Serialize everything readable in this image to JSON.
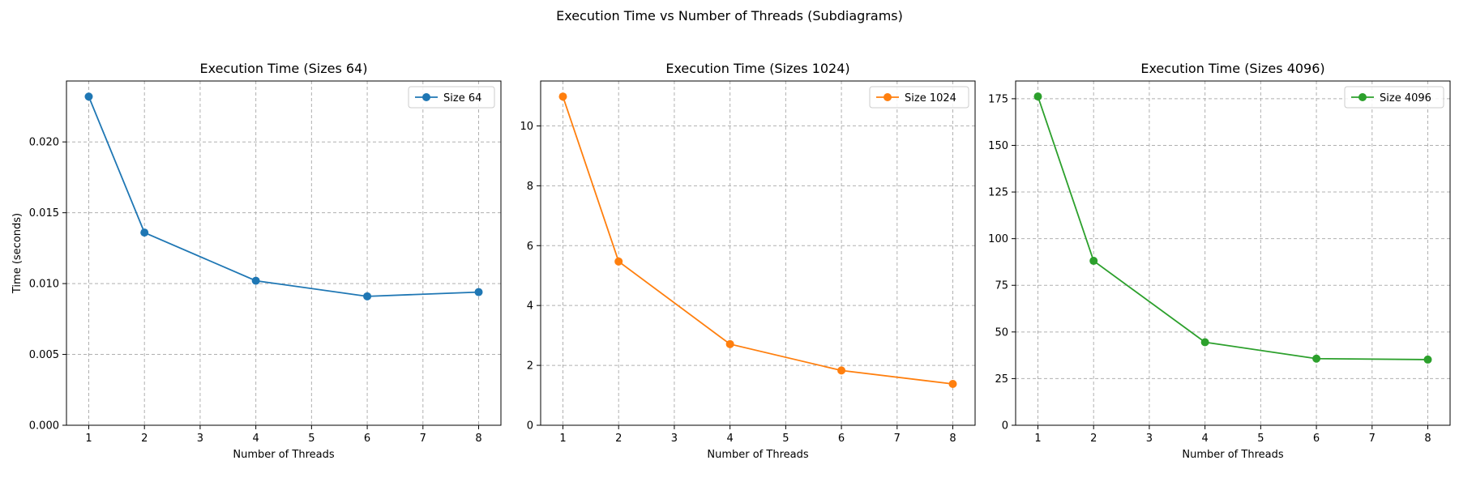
{
  "figure": {
    "suptitle": "Execution Time vs Number of Threads (Subdiagrams)"
  },
  "chart_data": [
    {
      "type": "line",
      "title": "Execution Time (Sizes 64)",
      "xlabel": "Number of Threads",
      "ylabel": "Time (seconds)",
      "x": [
        1,
        2,
        4,
        6,
        8
      ],
      "xticks": [
        1,
        2,
        3,
        4,
        5,
        6,
        7,
        8
      ],
      "xlim": [
        0.6,
        8.4
      ],
      "yticks": [
        0,
        0.005,
        0.01,
        0.015,
        0.02
      ],
      "ytick_labels": [
        "0.000",
        "0.005",
        "0.010",
        "0.015",
        "0.020"
      ],
      "ylim": [
        0,
        0.0243
      ],
      "grid": true,
      "legend_position": "top-right",
      "series": [
        {
          "name": "Size 64",
          "color": "#1f77b4",
          "values": [
            0.0232,
            0.0136,
            0.0102,
            0.0091,
            0.0094
          ]
        }
      ]
    },
    {
      "type": "line",
      "title": "Execution Time (Sizes 1024)",
      "xlabel": "Number of Threads",
      "ylabel": "",
      "x": [
        1,
        2,
        4,
        6,
        8
      ],
      "xticks": [
        1,
        2,
        3,
        4,
        5,
        6,
        7,
        8
      ],
      "xlim": [
        0.6,
        8.4
      ],
      "yticks": [
        0,
        2,
        4,
        6,
        8,
        10
      ],
      "ytick_labels": [
        "0",
        "2",
        "4",
        "6",
        "8",
        "10"
      ],
      "ylim": [
        0,
        11.5
      ],
      "grid": true,
      "legend_position": "top-right",
      "series": [
        {
          "name": "Size 1024",
          "color": "#ff7f0e",
          "values": [
            10.98,
            5.47,
            2.71,
            1.83,
            1.38
          ]
        }
      ]
    },
    {
      "type": "line",
      "title": "Execution Time (Sizes 4096)",
      "xlabel": "Number of Threads",
      "ylabel": "",
      "x": [
        1,
        2,
        4,
        6,
        8
      ],
      "xticks": [
        1,
        2,
        3,
        4,
        5,
        6,
        7,
        8
      ],
      "xlim": [
        0.6,
        8.4
      ],
      "yticks": [
        0,
        25,
        50,
        75,
        100,
        125,
        150,
        175
      ],
      "ytick_labels": [
        "0",
        "25",
        "50",
        "75",
        "100",
        "125",
        "150",
        "175"
      ],
      "ylim": [
        0,
        184.5
      ],
      "grid": true,
      "legend_position": "top-right",
      "series": [
        {
          "name": "Size 4096",
          "color": "#2ca02c",
          "values": [
            176.2,
            88.1,
            44.5,
            35.7,
            35.2
          ]
        }
      ]
    }
  ]
}
